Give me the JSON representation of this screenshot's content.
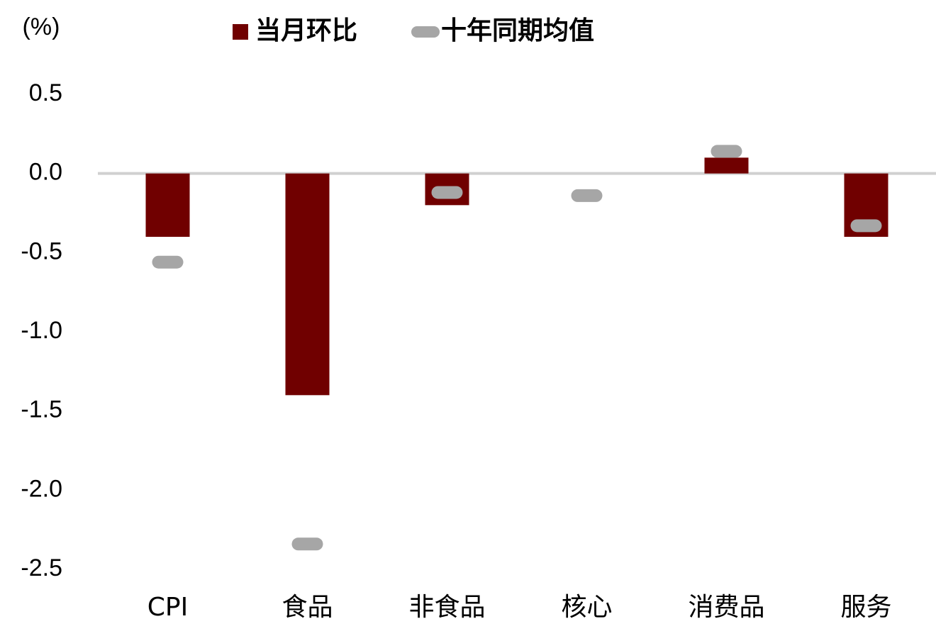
{
  "chart_data": {
    "type": "bar",
    "y_label": "(%)",
    "categories": [
      "CPI",
      "食品",
      "非食品",
      "核心",
      "消费品",
      "服务"
    ],
    "series": [
      {
        "name": "当月环比",
        "color": "#700000",
        "style": "bar",
        "values": [
          -0.4,
          -1.4,
          -0.2,
          0,
          0.1,
          -0.4
        ]
      },
      {
        "name": "十年同期均值",
        "color": "#a6a6a6",
        "style": "dash-marker",
        "values": [
          -0.56,
          -2.34,
          -0.12,
          -0.14,
          0.14,
          -0.33
        ]
      }
    ],
    "ylim": [
      -2.5,
      0.5
    ],
    "yticks": [
      {
        "value": 0.5,
        "label": "0.5"
      },
      {
        "value": 0,
        "label": "0.0"
      },
      {
        "value": -0.5,
        "label": "-0.5"
      },
      {
        "value": -1,
        "label": "-1.0"
      },
      {
        "value": -1.5,
        "label": "-1.5"
      },
      {
        "value": -2,
        "label": "-2.0"
      },
      {
        "value": -2.5,
        "label": "-2.5"
      }
    ],
    "grid": false
  }
}
